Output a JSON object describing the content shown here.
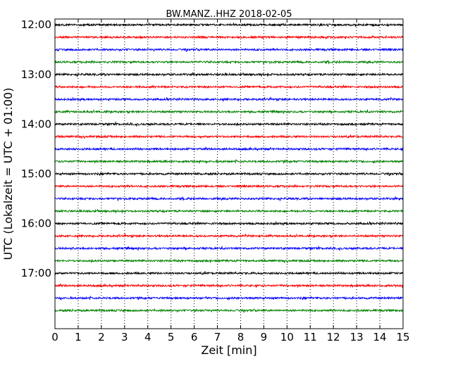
{
  "chart_data": {
    "type": "line",
    "title": "BW.MANZ..HHZ 2018-02-05",
    "xlabel": "Zeit  [min]",
    "ylabel": "UTC (Lokalzeit = UTC + 01:00)",
    "xlim": [
      0,
      15
    ],
    "x_ticks": [
      "0",
      "1",
      "2",
      "3",
      "4",
      "5",
      "6",
      "7",
      "8",
      "9",
      "10",
      "11",
      "12",
      "13",
      "14",
      "15"
    ],
    "y_ticks": [
      "12:00",
      "13:00",
      "14:00",
      "15:00",
      "16:00",
      "17:00"
    ],
    "ylim": [
      "11:53",
      "18:07"
    ],
    "y_inverted": true,
    "vertical_grid": true,
    "grid_style": "dotted",
    "trace_interval_min": 15,
    "trace_start": "12:00",
    "trace_count": 24,
    "trace_colors": [
      "#000000",
      "#ff0000",
      "#0000ff",
      "#008000"
    ],
    "series": [
      {
        "start": "12:00",
        "color": "#000000"
      },
      {
        "start": "12:15",
        "color": "#ff0000"
      },
      {
        "start": "12:30",
        "color": "#0000ff"
      },
      {
        "start": "12:45",
        "color": "#008000"
      },
      {
        "start": "13:00",
        "color": "#000000"
      },
      {
        "start": "13:15",
        "color": "#ff0000"
      },
      {
        "start": "13:30",
        "color": "#0000ff"
      },
      {
        "start": "13:45",
        "color": "#008000"
      },
      {
        "start": "14:00",
        "color": "#000000"
      },
      {
        "start": "14:15",
        "color": "#ff0000"
      },
      {
        "start": "14:30",
        "color": "#0000ff"
      },
      {
        "start": "14:45",
        "color": "#008000"
      },
      {
        "start": "15:00",
        "color": "#000000"
      },
      {
        "start": "15:15",
        "color": "#ff0000"
      },
      {
        "start": "15:30",
        "color": "#0000ff"
      },
      {
        "start": "15:45",
        "color": "#008000"
      },
      {
        "start": "16:00",
        "color": "#000000"
      },
      {
        "start": "16:15",
        "color": "#ff0000"
      },
      {
        "start": "16:30",
        "color": "#0000ff"
      },
      {
        "start": "16:45",
        "color": "#008000"
      },
      {
        "start": "17:00",
        "color": "#000000"
      },
      {
        "start": "17:15",
        "color": "#ff0000"
      },
      {
        "start": "17:30",
        "color": "#0000ff"
      },
      {
        "start": "17:45",
        "color": "#008000"
      }
    ]
  }
}
